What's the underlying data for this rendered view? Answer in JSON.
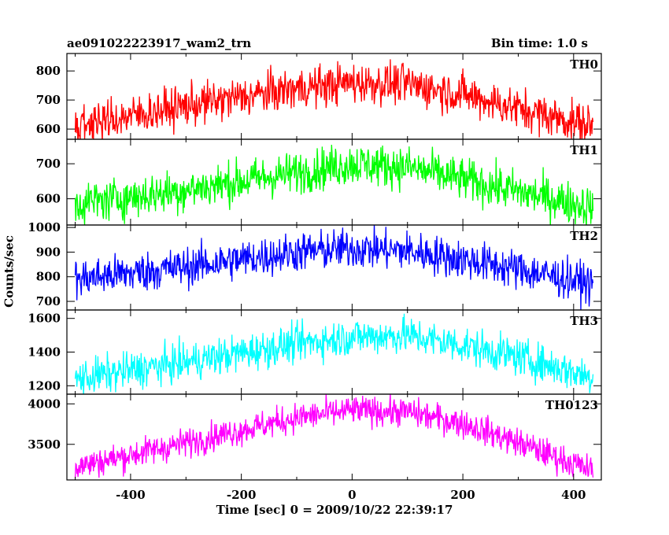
{
  "chart_data": {
    "type": "line",
    "title": "ae091022223917_wam2_trn",
    "subtitle": "Bin time: 1.0 s",
    "xlabel": "Time [sec] 0 = 2009/10/22 22:39:17",
    "ylabel": "Counts/sec",
    "xlim": [
      -515,
      450
    ],
    "x_ticks": [
      -400,
      -200,
      0,
      200,
      400
    ],
    "data_x_range": [
      -500,
      435
    ],
    "panels": [
      {
        "name": "TH0",
        "color": "#ff0000",
        "ylim": [
          565,
          860
        ],
        "y_ticks": [
          600,
          700,
          800
        ],
        "trend": [
          [
            -500,
            610
          ],
          [
            -300,
            680
          ],
          [
            -100,
            740
          ],
          [
            0,
            760
          ],
          [
            100,
            755
          ],
          [
            200,
            720
          ],
          [
            300,
            670
          ],
          [
            435,
            610
          ]
        ],
        "noise": 35
      },
      {
        "name": "TH1",
        "color": "#00ff00",
        "ylim": [
          525,
          770
        ],
        "y_ticks": [
          600,
          700
        ],
        "trend": [
          [
            -500,
            585
          ],
          [
            -300,
            625
          ],
          [
            -100,
            675
          ],
          [
            0,
            700
          ],
          [
            100,
            690
          ],
          [
            200,
            655
          ],
          [
            300,
            620
          ],
          [
            435,
            575
          ]
        ],
        "noise": 30
      },
      {
        "name": "TH2",
        "color": "#0000ff",
        "ylim": [
          665,
          1010
        ],
        "y_ticks": [
          700,
          800,
          900,
          1000
        ],
        "trend": [
          [
            -500,
            790
          ],
          [
            -300,
            840
          ],
          [
            -100,
            900
          ],
          [
            0,
            915
          ],
          [
            100,
            905
          ],
          [
            200,
            870
          ],
          [
            300,
            830
          ],
          [
            435,
            770
          ]
        ],
        "noise": 40
      },
      {
        "name": "TH3",
        "color": "#00ffff",
        "ylim": [
          1150,
          1650
        ],
        "y_ticks": [
          1200,
          1400,
          1600
        ],
        "trend": [
          [
            -500,
            1240
          ],
          [
            -300,
            1340
          ],
          [
            -100,
            1450
          ],
          [
            0,
            1490
          ],
          [
            100,
            1500
          ],
          [
            200,
            1440
          ],
          [
            300,
            1370
          ],
          [
            435,
            1250
          ]
        ],
        "noise": 55
      },
      {
        "name": "TH0123",
        "color": "#ff00ff",
        "ylim": [
          3060,
          4120
        ],
        "y_ticks": [
          3500,
          4000
        ],
        "trend": [
          [
            -500,
            3220
          ],
          [
            -300,
            3520
          ],
          [
            -100,
            3830
          ],
          [
            0,
            3920
          ],
          [
            100,
            3900
          ],
          [
            200,
            3760
          ],
          [
            300,
            3520
          ],
          [
            435,
            3170
          ]
        ],
        "noise": 90
      }
    ]
  }
}
